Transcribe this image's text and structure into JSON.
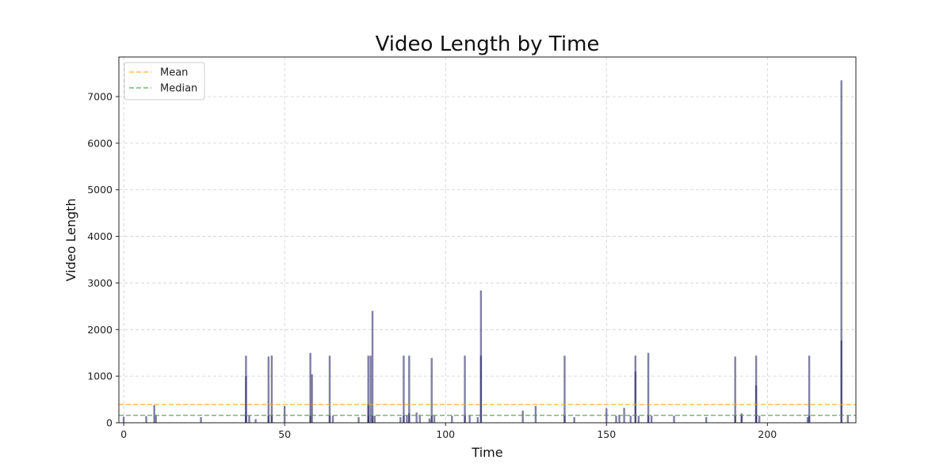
{
  "chart_data": {
    "type": "bar",
    "title": "Video Length by Time",
    "xlabel": "Time",
    "ylabel": "Video Length",
    "xlim": [
      -1.5,
      227.5
    ],
    "ylim": [
      0,
      7850
    ],
    "xticks": [
      0,
      50,
      100,
      150,
      200
    ],
    "yticks": [
      0,
      1000,
      2000,
      3000,
      4000,
      5000,
      6000,
      7000
    ],
    "grid": true,
    "legend": "top-left",
    "bar_color": "#2b2a6b",
    "bar_opacity": 0.6,
    "reference_lines": [
      {
        "name": "Mean",
        "value": 390,
        "color": "#ffa726"
      },
      {
        "name": "Median",
        "value": 160,
        "color": "#4c9a4c"
      }
    ],
    "bars": [
      {
        "x": 0,
        "values": [
          130
        ]
      },
      {
        "x": 7,
        "values": [
          140
        ]
      },
      {
        "x": 9.5,
        "values": [
          380
        ]
      },
      {
        "x": 10,
        "values": [
          160
        ]
      },
      {
        "x": 24,
        "values": [
          120
        ]
      },
      {
        "x": 38,
        "values": [
          1440,
          1000,
          150
        ]
      },
      {
        "x": 39,
        "values": [
          150
        ]
      },
      {
        "x": 41,
        "values": [
          80
        ]
      },
      {
        "x": 45,
        "values": [
          1420,
          150
        ]
      },
      {
        "x": 46,
        "values": [
          1440,
          150
        ]
      },
      {
        "x": 50,
        "values": [
          360
        ]
      },
      {
        "x": 58,
        "values": [
          1500,
          150
        ]
      },
      {
        "x": 58.5,
        "values": [
          1040
        ]
      },
      {
        "x": 64,
        "values": [
          1440,
          160
        ]
      },
      {
        "x": 65,
        "values": [
          150
        ]
      },
      {
        "x": 73,
        "values": [
          120
        ]
      },
      {
        "x": 76,
        "values": [
          1440,
          400,
          150
        ]
      },
      {
        "x": 76.7,
        "values": [
          1440
        ]
      },
      {
        "x": 77.3,
        "values": [
          2400,
          150
        ]
      },
      {
        "x": 78,
        "values": [
          150
        ]
      },
      {
        "x": 86,
        "values": [
          120
        ]
      },
      {
        "x": 87,
        "values": [
          1440,
          150
        ]
      },
      {
        "x": 88,
        "values": [
          150
        ]
      },
      {
        "x": 88.7,
        "values": [
          1440,
          200
        ]
      },
      {
        "x": 91,
        "values": [
          220
        ]
      },
      {
        "x": 92,
        "values": [
          150
        ]
      },
      {
        "x": 95,
        "values": [
          90
        ]
      },
      {
        "x": 95.7,
        "values": [
          1390,
          150
        ]
      },
      {
        "x": 96.5,
        "values": [
          150
        ]
      },
      {
        "x": 102,
        "values": [
          150
        ]
      },
      {
        "x": 106,
        "values": [
          1440,
          150
        ]
      },
      {
        "x": 107.5,
        "values": [
          150
        ]
      },
      {
        "x": 110,
        "values": [
          120
        ]
      },
      {
        "x": 111,
        "values": [
          2840,
          1440
        ]
      },
      {
        "x": 124,
        "values": [
          260
        ]
      },
      {
        "x": 128,
        "values": [
          360
        ]
      },
      {
        "x": 137,
        "values": [
          1440,
          150
        ]
      },
      {
        "x": 140,
        "values": [
          120
        ]
      },
      {
        "x": 150,
        "values": [
          310
        ]
      },
      {
        "x": 153,
        "values": [
          150
        ]
      },
      {
        "x": 154,
        "values": [
          160
        ]
      },
      {
        "x": 155.5,
        "values": [
          320
        ]
      },
      {
        "x": 157.5,
        "values": [
          150
        ]
      },
      {
        "x": 159,
        "values": [
          1440,
          1100
        ]
      },
      {
        "x": 160,
        "values": [
          150
        ]
      },
      {
        "x": 163,
        "values": [
          1500,
          150
        ]
      },
      {
        "x": 164,
        "values": [
          150
        ]
      },
      {
        "x": 171,
        "values": [
          150
        ]
      },
      {
        "x": 181,
        "values": [
          120
        ]
      },
      {
        "x": 190,
        "values": [
          1420,
          150
        ]
      },
      {
        "x": 192,
        "values": [
          200,
          150
        ]
      },
      {
        "x": 196.5,
        "values": [
          1440,
          800,
          150
        ]
      },
      {
        "x": 197.5,
        "values": [
          150
        ]
      },
      {
        "x": 212.5,
        "values": [
          120
        ]
      },
      {
        "x": 213,
        "values": [
          1440,
          150
        ]
      },
      {
        "x": 223,
        "values": [
          7350,
          1760
        ]
      },
      {
        "x": 225,
        "values": [
          150
        ]
      }
    ]
  }
}
